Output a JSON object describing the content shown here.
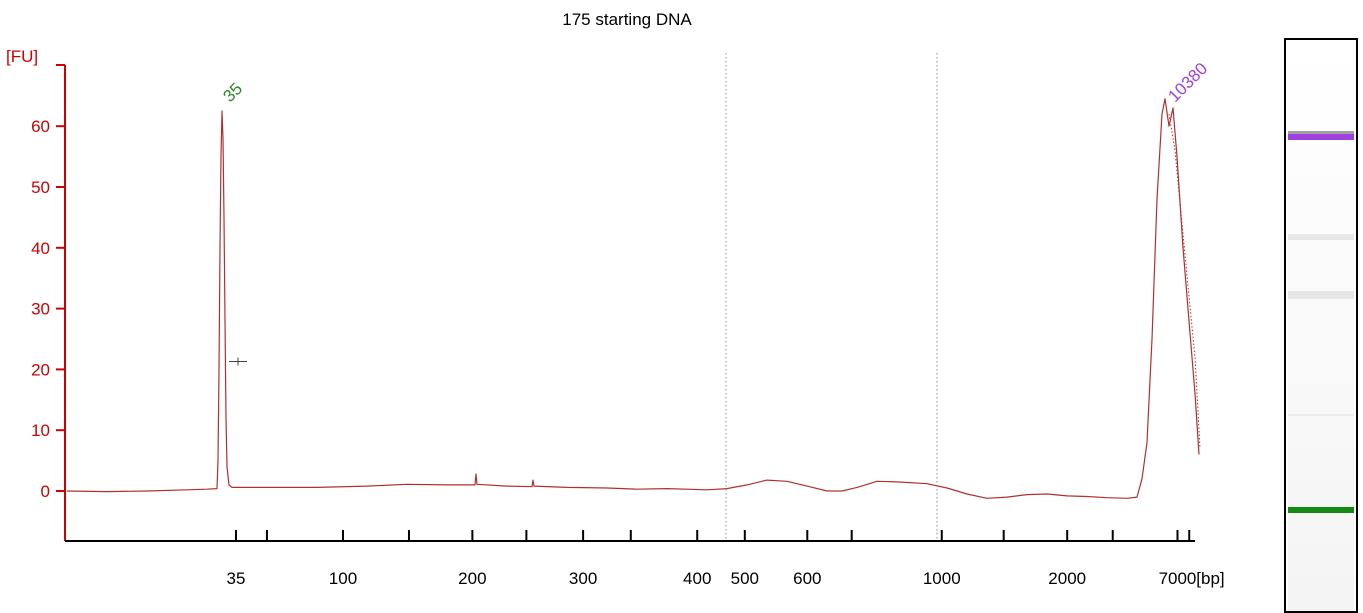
{
  "chart_data": {
    "type": "line",
    "title": "175 starting DNA",
    "y_unit_label": "[FU]",
    "x_unit_label": "[bp]",
    "ylim": [
      -8.5,
      70
    ],
    "yticks": [
      0,
      10,
      20,
      30,
      40,
      50,
      60
    ],
    "x_tick_labels": [
      "35",
      "",
      "100",
      "",
      "200",
      "",
      "300",
      "",
      "400",
      "500",
      "600",
      "",
      "1000",
      "",
      "2000",
      "",
      "7000",
      "",
      "[bp]"
    ],
    "grid": false,
    "legend": "none",
    "line_color": "#b03030",
    "axis_color": "#d00000",
    "peaks": [
      {
        "label": "35",
        "label_color": "#2a8a2a",
        "height_fu": 62.5
      },
      {
        "label": "10380",
        "label_color": "#a040e0",
        "height_fu": 65
      }
    ],
    "region_markers": [
      "450",
      "1100"
    ],
    "series": [
      {
        "points": [
          [
            0.0,
            0.0
          ],
          [
            0.04,
            -0.1
          ],
          [
            0.08,
            0.0
          ],
          [
            0.12,
            0.2
          ],
          [
            0.14,
            0.3
          ],
          [
            0.15,
            0.4
          ],
          [
            0.151,
            5.0
          ],
          [
            0.152,
            20.0
          ],
          [
            0.153,
            40.0
          ],
          [
            0.154,
            55.0
          ],
          [
            0.155,
            62.5
          ],
          [
            0.156,
            58.0
          ],
          [
            0.157,
            45.0
          ],
          [
            0.158,
            28.0
          ],
          [
            0.159,
            12.0
          ],
          [
            0.16,
            4.0
          ],
          [
            0.162,
            1.0
          ],
          [
            0.165,
            0.6
          ],
          [
            0.2,
            0.6
          ],
          [
            0.25,
            0.6
          ],
          [
            0.3,
            0.8
          ],
          [
            0.34,
            1.1
          ],
          [
            0.38,
            1.0
          ],
          [
            0.4,
            1.0
          ],
          [
            0.408,
            1.0
          ],
          [
            0.409,
            2.8
          ],
          [
            0.41,
            1.1
          ],
          [
            0.44,
            0.8
          ],
          [
            0.465,
            0.7
          ],
          [
            0.466,
            1.8
          ],
          [
            0.467,
            0.8
          ],
          [
            0.5,
            0.6
          ],
          [
            0.54,
            0.5
          ],
          [
            0.57,
            0.3
          ],
          [
            0.6,
            0.4
          ],
          [
            0.64,
            0.2
          ],
          [
            0.66,
            0.4
          ],
          [
            0.68,
            1.0
          ],
          [
            0.7,
            1.8
          ],
          [
            0.72,
            1.6
          ],
          [
            0.74,
            0.8
          ],
          [
            0.76,
            0.0
          ],
          [
            0.775,
            0.0
          ],
          [
            0.79,
            0.6
          ],
          [
            0.81,
            1.6
          ],
          [
            0.83,
            1.5
          ],
          [
            0.86,
            1.2
          ],
          [
            0.88,
            0.5
          ],
          [
            0.9,
            -0.5
          ],
          [
            0.92,
            -1.2
          ],
          [
            0.94,
            -1.0
          ],
          [
            0.96,
            -0.6
          ],
          [
            0.98,
            -0.5
          ],
          [
            1.0,
            -0.8
          ],
          [
            1.02,
            -0.9
          ],
          [
            1.04,
            -1.1
          ],
          [
            1.06,
            -1.2
          ],
          [
            1.07,
            -1.0
          ],
          [
            1.075,
            2.0
          ],
          [
            1.08,
            8.0
          ],
          [
            1.085,
            25.0
          ],
          [
            1.09,
            48.0
          ],
          [
            1.095,
            62.0
          ],
          [
            1.098,
            64.5
          ],
          [
            1.102,
            60.0
          ],
          [
            1.106,
            63.0
          ],
          [
            1.11,
            55.0
          ],
          [
            1.116,
            40.0
          ],
          [
            1.122,
            28.0
          ],
          [
            1.128,
            16.0
          ],
          [
            1.132,
            6.0
          ]
        ]
      }
    ]
  },
  "gel": {
    "bands": [
      {
        "name": "upper-marker-band",
        "color": "#a040e0",
        "position_fraction": 0.165
      },
      {
        "name": "lower-marker-band",
        "color": "#138a13",
        "position_fraction": 0.818
      }
    ]
  }
}
